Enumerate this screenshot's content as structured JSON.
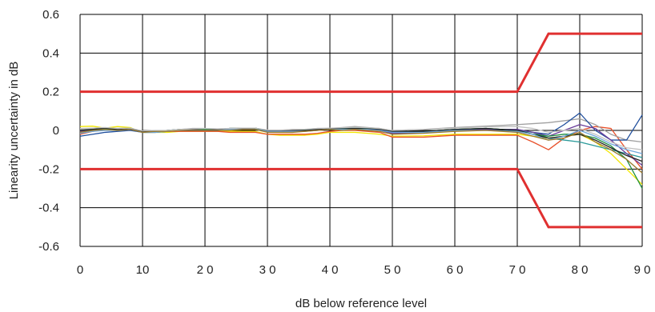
{
  "chart_data": {
    "type": "line",
    "title": "",
    "xlabel": "dB below reference level",
    "ylabel": "Linearity uncertainty in dB",
    "xlim": [
      0,
      90
    ],
    "ylim": [
      -0.6,
      0.6
    ],
    "x_ticks": [
      {
        "value": 0,
        "label": "0"
      },
      {
        "value": 10,
        "label": "10"
      },
      {
        "value": 20,
        "label": "2 0"
      },
      {
        "value": 30,
        "label": "3 0"
      },
      {
        "value": 40,
        "label": "4 0"
      },
      {
        "value": 50,
        "label": "5 0"
      },
      {
        "value": 60,
        "label": "6 0"
      },
      {
        "value": 70,
        "label": "7 0"
      },
      {
        "value": 80,
        "label": "8 0"
      },
      {
        "value": 90,
        "label": "9 0"
      }
    ],
    "y_ticks": [
      {
        "value": 0.6,
        "label": "0.6"
      },
      {
        "value": 0.4,
        "label": "0.4"
      },
      {
        "value": 0.2,
        "label": "0.2"
      },
      {
        "value": 0,
        "label": "0"
      },
      {
        "value": -0.2,
        "label": "-0.2"
      },
      {
        "value": -0.4,
        "label": "-0.4"
      },
      {
        "value": -0.6,
        "label": "-0.6"
      }
    ],
    "grid": true,
    "limits": {
      "color": "#e03030",
      "upper": {
        "x": [
          0,
          70,
          75,
          90
        ],
        "y": [
          0.2,
          0.2,
          0.5,
          0.5
        ]
      },
      "lower": {
        "x": [
          0,
          70,
          75,
          90
        ],
        "y": [
          -0.2,
          -0.2,
          -0.5,
          -0.5
        ]
      }
    },
    "x": [
      0,
      2,
      4,
      6,
      8,
      10,
      12,
      14,
      16,
      18,
      20,
      22,
      24,
      26,
      28,
      30,
      32,
      34,
      36,
      38,
      40,
      42,
      44,
      46,
      48,
      50,
      55,
      60,
      65,
      70,
      72.5,
      75,
      77.5,
      80,
      82.5,
      85,
      87.5,
      90
    ],
    "series": [
      {
        "color": "#f2e600",
        "values": [
          0.02,
          0.022,
          0.012,
          0.02,
          0.015,
          -0.01,
          -0.01,
          -0.01,
          -0.005,
          -0.005,
          -0.005,
          -0.005,
          -0.005,
          -0.005,
          -0.005,
          -0.02,
          -0.025,
          -0.025,
          -0.025,
          -0.02,
          -0.01,
          -0.01,
          -0.01,
          -0.015,
          -0.02,
          -0.03,
          -0.028,
          -0.02,
          -0.02,
          -0.02,
          -0.03,
          -0.04,
          -0.03,
          -0.02,
          -0.06,
          -0.12,
          -0.2,
          -0.28
        ]
      },
      {
        "color": "#e8502a",
        "values": [
          -0.02,
          -0.005,
          0.005,
          0.0,
          0.005,
          -0.005,
          -0.005,
          -0.005,
          -0.005,
          -0.005,
          -0.005,
          -0.005,
          -0.01,
          -0.01,
          -0.01,
          -0.02,
          -0.02,
          -0.02,
          -0.02,
          -0.015,
          -0.005,
          0.0,
          0.0,
          -0.005,
          -0.01,
          -0.035,
          -0.035,
          -0.025,
          -0.025,
          -0.025,
          -0.06,
          -0.1,
          -0.04,
          0.0,
          0.02,
          0.01,
          -0.1,
          -0.2
        ]
      },
      {
        "color": "#a0a0a0",
        "values": [
          0.005,
          0.01,
          0.012,
          0.01,
          0.012,
          -0.005,
          -0.005,
          0.0,
          0.005,
          0.01,
          0.01,
          0.005,
          0.01,
          0.012,
          0.012,
          0.0,
          0.0,
          0.005,
          0.005,
          0.01,
          0.01,
          0.015,
          0.02,
          0.015,
          0.01,
          0.0,
          0.005,
          0.015,
          0.022,
          0.03,
          0.035,
          0.04,
          0.05,
          0.06,
          0.03,
          -0.02,
          -0.05,
          -0.06
        ]
      },
      {
        "color": "#1f4e9c",
        "values": [
          -0.03,
          -0.02,
          -0.01,
          -0.005,
          0.0,
          -0.01,
          -0.01,
          -0.005,
          0.0,
          0.0,
          0.0,
          0.0,
          0.005,
          0.005,
          0.005,
          0.0,
          0.0,
          0.0,
          0.0,
          0.005,
          0.005,
          0.005,
          0.005,
          0.005,
          0.0,
          -0.01,
          -0.01,
          0.0,
          0.005,
          0.005,
          -0.01,
          -0.02,
          0.03,
          0.09,
          0.0,
          -0.05,
          -0.05,
          0.08
        ]
      },
      {
        "color": "#2a9a9a",
        "values": [
          -0.01,
          0.0,
          0.01,
          0.0,
          0.01,
          -0.005,
          -0.005,
          0.0,
          0.0,
          0.005,
          0.005,
          0.005,
          0.005,
          0.01,
          0.01,
          0.0,
          0.0,
          0.0,
          0.0,
          0.005,
          0.01,
          0.01,
          0.015,
          0.01,
          0.005,
          -0.005,
          -0.005,
          0.005,
          0.01,
          0.0,
          -0.01,
          -0.04,
          -0.05,
          -0.06,
          -0.08,
          -0.1,
          -0.12,
          -0.14
        ]
      },
      {
        "color": "#6a3d9a",
        "values": [
          -0.005,
          0.005,
          0.005,
          0.0,
          0.01,
          -0.005,
          -0.005,
          0.0,
          0.0,
          0.0,
          0.0,
          0.0,
          0.005,
          0.005,
          0.005,
          -0.005,
          -0.005,
          -0.005,
          0.0,
          0.0,
          0.005,
          0.005,
          0.005,
          0.0,
          0.0,
          -0.015,
          -0.01,
          0.0,
          0.005,
          0.005,
          -0.01,
          -0.03,
          0.0,
          0.03,
          0.01,
          -0.05,
          -0.12,
          -0.18
        ]
      },
      {
        "color": "#1a8c3c",
        "values": [
          0.0,
          0.005,
          0.01,
          0.005,
          0.012,
          -0.005,
          -0.005,
          0.0,
          0.005,
          0.005,
          0.005,
          0.005,
          0.01,
          0.01,
          0.01,
          0.0,
          0.0,
          0.0,
          0.005,
          0.005,
          0.01,
          0.01,
          0.01,
          0.01,
          0.005,
          -0.005,
          -0.005,
          0.005,
          0.01,
          0.0,
          -0.02,
          -0.03,
          -0.02,
          -0.02,
          -0.04,
          -0.08,
          -0.15,
          -0.3
        ]
      },
      {
        "color": "#222222",
        "values": [
          0.0,
          0.005,
          0.012,
          0.005,
          0.01,
          -0.005,
          -0.005,
          0.0,
          0.005,
          0.005,
          0.0,
          0.005,
          0.01,
          0.01,
          0.012,
          0.0,
          0.0,
          0.0,
          0.0,
          0.005,
          0.008,
          0.008,
          0.01,
          0.008,
          0.005,
          -0.005,
          -0.005,
          0.005,
          0.01,
          0.0,
          -0.02,
          -0.04,
          -0.03,
          -0.02,
          -0.05,
          -0.09,
          -0.13,
          -0.16
        ]
      },
      {
        "color": "#6fa8dc",
        "values": [
          -0.015,
          -0.005,
          0.0,
          0.0,
          0.005,
          -0.01,
          -0.01,
          -0.005,
          0.0,
          0.0,
          0.0,
          0.0,
          0.005,
          0.005,
          0.005,
          -0.005,
          -0.005,
          -0.005,
          -0.005,
          0.0,
          0.005,
          0.005,
          0.005,
          0.005,
          0.0,
          -0.01,
          -0.01,
          0.0,
          0.0,
          -0.005,
          -0.02,
          -0.05,
          -0.03,
          0.0,
          -0.03,
          -0.07,
          -0.1,
          -0.12
        ]
      },
      {
        "color": "#9c7a2a",
        "values": [
          -0.01,
          0.0,
          0.005,
          0.0,
          0.005,
          -0.01,
          -0.005,
          -0.005,
          0.0,
          0.0,
          0.0,
          0.0,
          0.0,
          0.005,
          0.005,
          -0.01,
          -0.01,
          -0.01,
          -0.005,
          0.0,
          0.005,
          0.0,
          0.005,
          0.0,
          -0.005,
          -0.02,
          -0.015,
          -0.005,
          0.0,
          -0.01,
          -0.03,
          -0.05,
          -0.04,
          -0.01,
          -0.06,
          -0.1,
          -0.15,
          -0.22
        ]
      },
      {
        "color": "#c2c2c2",
        "values": [
          0.01,
          0.012,
          0.015,
          0.01,
          0.012,
          -0.002,
          0.0,
          0.0,
          0.005,
          0.008,
          0.01,
          0.008,
          0.01,
          0.012,
          0.012,
          0.002,
          0.002,
          0.004,
          0.006,
          0.01,
          0.012,
          0.014,
          0.016,
          0.014,
          0.01,
          0.0,
          0.004,
          0.012,
          0.018,
          0.02,
          0.01,
          -0.01,
          0.0,
          0.01,
          -0.02,
          -0.06,
          -0.09,
          -0.1
        ]
      }
    ]
  }
}
